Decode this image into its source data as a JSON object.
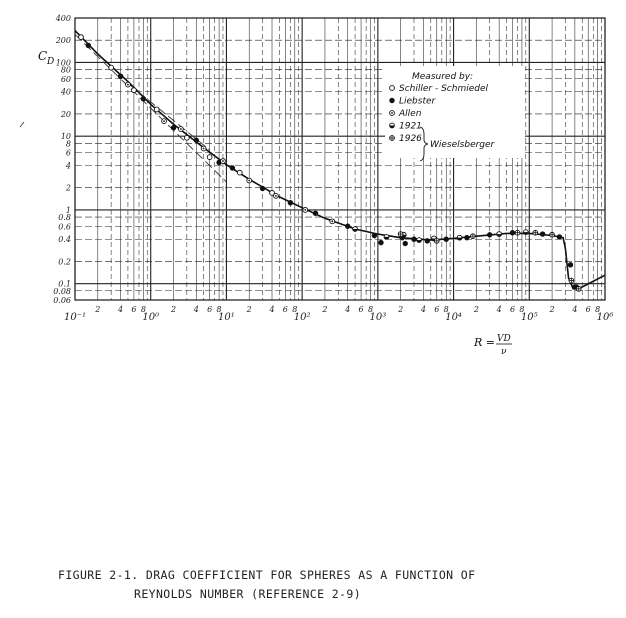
{
  "chart_data": {
    "type": "scatter",
    "title": "",
    "ylabel": "C",
    "ylabel_sub": "D",
    "xlabel": "R = VD/ν",
    "xlabel_main": "R =",
    "xlabel_num": "VD",
    "xlabel_den": "ν",
    "x_scale": "log",
    "y_scale": "log",
    "xlim": [
      0.1,
      1000000
    ],
    "ylim": [
      0.06,
      400
    ],
    "grid": true,
    "y_ticks": [
      {
        "v": 400,
        "label": "400"
      },
      {
        "v": 200,
        "label": "200"
      },
      {
        "v": 100,
        "label": "100"
      },
      {
        "v": 80,
        "label": "80"
      },
      {
        "v": 60,
        "label": "60"
      },
      {
        "v": 40,
        "label": "40"
      },
      {
        "v": 20,
        "label": "20"
      },
      {
        "v": 10,
        "label": "10"
      },
      {
        "v": 8,
        "label": "8"
      },
      {
        "v": 6,
        "label": "6"
      },
      {
        "v": 4,
        "label": "4"
      },
      {
        "v": 2,
        "label": "2"
      },
      {
        "v": 1,
        "label": "1"
      },
      {
        "v": 0.8,
        "label": "0.8"
      },
      {
        "v": 0.6,
        "label": "0.6"
      },
      {
        "v": 0.4,
        "label": "0.4"
      },
      {
        "v": 0.2,
        "label": "0.2"
      },
      {
        "v": 0.1,
        "label": "0.1"
      },
      {
        "v": 0.08,
        "label": "0.08"
      },
      {
        "v": 0.06,
        "label": "0.06"
      }
    ],
    "x_decade_labels": [
      {
        "v": 0.1,
        "label": "10⁻¹"
      },
      {
        "v": 1,
        "label": "10⁰"
      },
      {
        "v": 10,
        "label": "10¹"
      },
      {
        "v": 100,
        "label": "10²"
      },
      {
        "v": 1000,
        "label": "10³"
      },
      {
        "v": 10000,
        "label": "10⁴"
      },
      {
        "v": 100000,
        "label": "10⁵"
      },
      {
        "v": 1000000,
        "label": "10⁶"
      }
    ],
    "x_minor_labels": [
      "2",
      "4",
      "6",
      "8"
    ],
    "legend": {
      "title": "Measured by:",
      "position": "top-right",
      "entries": [
        {
          "label": "Schiller - Schmiedel",
          "marker": "open-circle"
        },
        {
          "label": "Liebster",
          "marker": "filled-circle"
        },
        {
          "label": "Allen",
          "marker": "dot-circle"
        },
        {
          "label": "1921",
          "marker": "half-circle"
        },
        {
          "label": "1926",
          "marker": "cross-circle"
        }
      ],
      "group_label": "Wieselsberger"
    },
    "curve": {
      "name": "",
      "x": [
        0.1,
        0.2,
        0.5,
        1,
        2,
        5,
        10,
        20,
        50,
        100,
        200,
        500,
        1000,
        2000,
        5000,
        10000,
        20000,
        50000,
        100000,
        200000,
        280000,
        300000,
        330000,
        380000,
        500000,
        1000000
      ],
      "y": [
        270,
        130,
        55,
        27,
        14.5,
        7,
        4.1,
        2.6,
        1.5,
        1.07,
        0.77,
        0.55,
        0.47,
        0.42,
        0.39,
        0.41,
        0.44,
        0.48,
        0.48,
        0.45,
        0.42,
        0.3,
        0.12,
        0.085,
        0.09,
        0.13
      ]
    },
    "stokes_line": {
      "x": [
        0.1,
        10
      ],
      "y": [
        240,
        2.4
      ]
    },
    "oseen_line": {
      "x": [
        0.5,
        6
      ],
      "y": [
        52,
        6.5
      ]
    },
    "series": [
      {
        "marker": "open-circle",
        "x": [
          0.12,
          0.3,
          0.6,
          1.2,
          3,
          6,
          15,
          40
        ],
        "y": [
          220,
          85,
          42,
          23,
          9.5,
          5.2,
          3.2,
          1.7
        ]
      },
      {
        "marker": "filled-circle",
        "x": [
          0.15,
          0.4,
          0.8,
          2,
          4,
          8,
          12,
          30,
          70,
          150,
          400,
          900,
          1100,
          2100,
          2300,
          3000,
          4500,
          8000,
          15000,
          30000,
          60000,
          150000,
          250000,
          350000,
          400000,
          420000
        ],
        "y": [
          170,
          65,
          32,
          13,
          8.8,
          4.4,
          3.7,
          1.95,
          1.25,
          0.9,
          0.6,
          0.45,
          0.36,
          0.42,
          0.35,
          0.4,
          0.38,
          0.4,
          0.42,
          0.46,
          0.49,
          0.47,
          0.43,
          0.18,
          0.09,
          0.09
        ]
      },
      {
        "marker": "dot-circle",
        "x": [
          0.5,
          1.5,
          2.5,
          5,
          9,
          20,
          45,
          110,
          250
        ],
        "y": [
          50,
          16,
          12.5,
          6.8,
          4.6,
          2.5,
          1.55,
          1.0,
          0.7
        ]
      },
      {
        "marker": "half-circle",
        "x": [
          500,
          1300,
          2200,
          3500,
          5500,
          12000,
          40000,
          90000
        ],
        "y": [
          0.55,
          0.43,
          0.46,
          0.39,
          0.41,
          0.42,
          0.47,
          0.5
        ]
      },
      {
        "marker": "cross-circle",
        "x": [
          2000,
          6000,
          18000,
          70000,
          120000,
          200000,
          360000,
          450000
        ],
        "y": [
          0.47,
          0.38,
          0.44,
          0.49,
          0.49,
          0.46,
          0.11,
          0.085
        ]
      }
    ]
  },
  "caption": {
    "line1": "FIGURE 2-1.  DRAG COEFFICIENT FOR SPHERES AS A FUNCTION OF",
    "line2": "REYNOLDS NUMBER (REFERENCE 2-9)"
  }
}
